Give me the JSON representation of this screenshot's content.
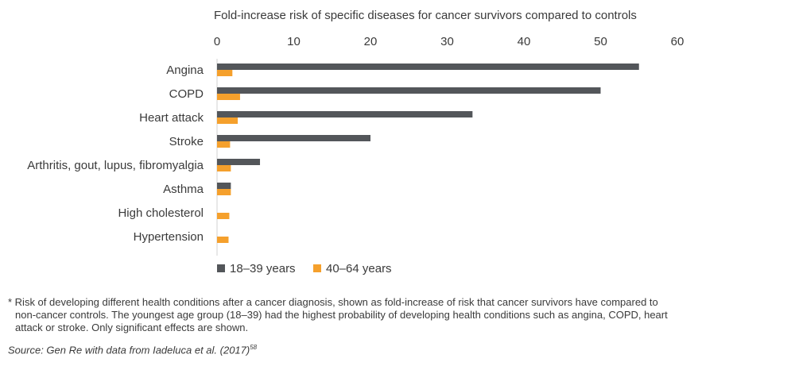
{
  "chart_data": {
    "type": "bar",
    "orientation": "horizontal",
    "title": "Fold-increase risk of specific diseases for cancer survivors compared to controls",
    "categories": [
      "Angina",
      "COPD",
      "Heart attack",
      "Stroke",
      "Arthritis, gout, lupus, fibromyalgia",
      "Asthma",
      "High cholesterol",
      "Hypertension"
    ],
    "series": [
      {
        "name": "18–39 years",
        "color": "#53565a",
        "values": [
          55,
          50,
          33.3,
          20,
          5.6,
          1.8,
          null,
          null
        ]
      },
      {
        "name": "40–64 years",
        "color": "#f5a02c",
        "values": [
          2,
          3,
          2.7,
          1.7,
          1.8,
          1.8,
          1.6,
          1.5
        ]
      }
    ],
    "xlim": [
      0,
      60
    ],
    "xticks": [
      "0",
      "10",
      "20",
      "30",
      "40",
      "50",
      "60"
    ],
    "xaxis_position": "top",
    "grid": false,
    "legend_position": "bottom-left"
  },
  "footnote": "* Risk of developing different health conditions after a cancer diagnosis, shown as fold-increase of risk that cancer survivors have compared to non-cancer controls. The youngest age group (18–39) had the highest probability of developing health conditions such as angina, COPD, heart attack or stroke. Only significant effects are shown.",
  "source": {
    "text": "Source: Gen Re with data from Iadeluca et al. (2017)",
    "ref": "58"
  }
}
